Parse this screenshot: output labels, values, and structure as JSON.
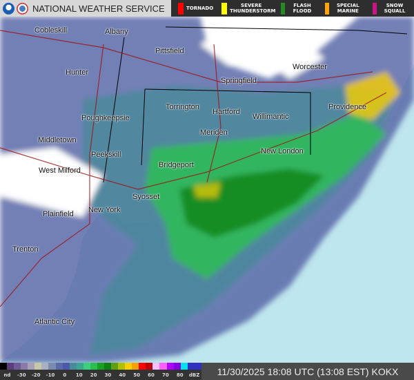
{
  "header": {
    "title": "NATIONAL WEATHER SERVICE",
    "logos": [
      "noaa-logo",
      "nws-logo"
    ],
    "warnings": [
      {
        "label": "TORNADO",
        "color": "#ff0000"
      },
      {
        "label": "SEVERE THUNDERSTORM",
        "color": "#ffff00"
      },
      {
        "label": "FLASH FLOOD",
        "color": "#228b22"
      },
      {
        "label": "SPECIAL MARINE",
        "color": "#ffa500"
      },
      {
        "label": "SNOW SQUALL",
        "color": "#c71585"
      }
    ]
  },
  "map": {
    "ocean_color": "#bfe6ee",
    "land_color": "#ffffff",
    "cities": [
      "Cobleskill",
      "Albany",
      "Pittsfield",
      "Hunter",
      "Springfield",
      "Worcester",
      "Torrington",
      "Hartford",
      "Poughkeepsie",
      "Willimantic",
      "Providence",
      "Meriden",
      "Middletown",
      "Peekskill",
      "New London",
      "Bridgeport",
      "West Milford",
      "Syosset",
      "New York",
      "Plainfield",
      "Trenton",
      "Atlantic City"
    ]
  },
  "legend": {
    "ticks": [
      "nd",
      "-30",
      "-20",
      "-10",
      "0",
      "10",
      "20",
      "30",
      "40",
      "50",
      "60",
      "70",
      "80",
      "dBZ"
    ],
    "colors": [
      "#000",
      "#5a3d7a",
      "#6e5a94",
      "#8a7aa8",
      "#a8a0b8",
      "#c8c8a8",
      "#a8b0c0",
      "#7a8ab0",
      "#5a6aa8",
      "#4a5aa8",
      "#4a8a9a",
      "#3aa890",
      "#3ad080",
      "#2ac050",
      "#1aa020",
      "#108010",
      "#60a010",
      "#b0c000",
      "#f8d000",
      "#f8a000",
      "#ff0000",
      "#c00000",
      "#ffc0ff",
      "#ff60ff",
      "#b000ff",
      "#8000e0",
      "#00e0f0",
      "#3030c0",
      "#3030c0"
    ]
  },
  "timestamp": "11/30/2025 18:08 UTC (13:08 EST) KOKX"
}
